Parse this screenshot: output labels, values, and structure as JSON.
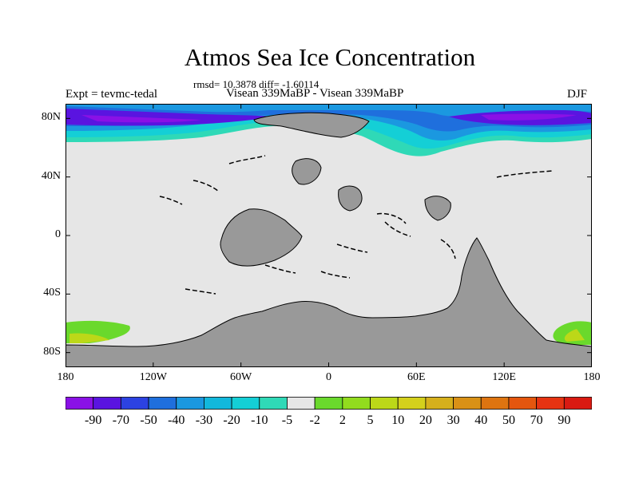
{
  "title": "Atmos Sea Ice Concentration",
  "stats": "rmsd= 10.3878 diff= -1.60114",
  "left_label": "Expt = tevmc-tedal",
  "center_label": "Visean 339MaBP - Visean 339MaBP",
  "right_label": "DJF",
  "colors": {
    "ocean_nodiff": "#e6e6e6",
    "land": "#999999",
    "coast": "#000000"
  },
  "chart_data": {
    "type": "heatmap",
    "projection": "cylindrical-equidistant",
    "xlim": [
      -180,
      180
    ],
    "ylim": [
      -90,
      90
    ],
    "x_ticks": [
      {
        "value": -180,
        "label": "180"
      },
      {
        "value": -120,
        "label": "120W"
      },
      {
        "value": -60,
        "label": "60W"
      },
      {
        "value": 0,
        "label": "0"
      },
      {
        "value": 60,
        "label": "60E"
      },
      {
        "value": 120,
        "label": "120E"
      },
      {
        "value": 180,
        "label": "180"
      }
    ],
    "y_ticks": [
      {
        "value": 80,
        "label": "80N"
      },
      {
        "value": 40,
        "label": "40N"
      },
      {
        "value": 0,
        "label": "0"
      },
      {
        "value": -40,
        "label": "40S"
      },
      {
        "value": -80,
        "label": "80S"
      }
    ],
    "colorbar": {
      "labels": [
        "-90",
        "-70",
        "-50",
        "-40",
        "-30",
        "-20",
        "-10",
        "-5",
        "-2",
        "2",
        "5",
        "10",
        "20",
        "30",
        "40",
        "50",
        "70",
        "90"
      ],
      "colors": [
        "#8a11e6",
        "#5a14e0",
        "#2c42e2",
        "#1f6fdd",
        "#1b98e0",
        "#12b8dc",
        "#14cfd6",
        "#2fd9b7",
        "#e6e6e6",
        "#6ad92c",
        "#92dc1e",
        "#bcd818",
        "#d4d01c",
        "#d6b01c",
        "#d99116",
        "#de7410",
        "#e4560e",
        "#e63312",
        "#d91a12"
      ]
    }
  }
}
